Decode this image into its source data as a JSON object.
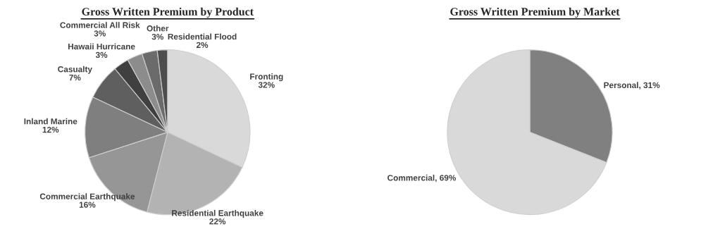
{
  "chart_data": [
    {
      "type": "pie",
      "title": "Gross Written Premium by Product",
      "categories": [
        "Fronting",
        "Residential Earthquake",
        "Commercial Earthquake",
        "Inland Marine",
        "Casualty",
        "Hawaii Hurricane",
        "Commercial All Risk",
        "Other",
        "Residential Flood"
      ],
      "values": [
        32,
        22,
        16,
        12,
        7,
        3,
        3,
        3,
        2
      ],
      "value_labels": [
        "32%",
        "22%",
        "16%",
        "12%",
        "7%",
        "3%",
        "3%",
        "3%",
        "2%"
      ],
      "colors": [
        "#d9d9d9",
        "#b3b3b3",
        "#969696",
        "#7f7f7f",
        "#5f5f5f",
        "#404040",
        "#8c8c8c",
        "#6b6b6b",
        "#4d4d4d"
      ]
    },
    {
      "type": "pie",
      "title": "Gross Written Premium by Market",
      "categories": [
        "Personal",
        "Commercial"
      ],
      "values": [
        31,
        69
      ],
      "value_labels": [
        "31%",
        "69%"
      ],
      "colors": [
        "#808080",
        "#d9d9d9"
      ]
    }
  ]
}
